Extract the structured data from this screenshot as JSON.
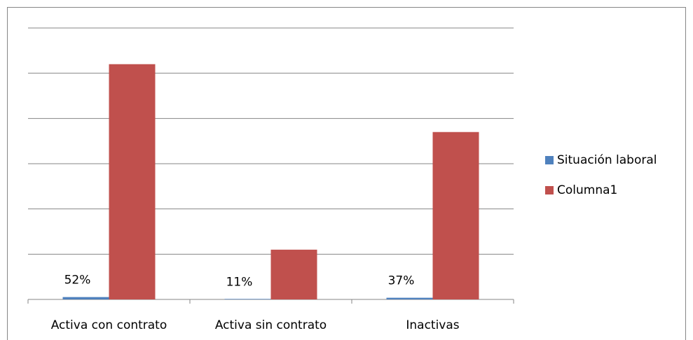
{
  "chart_data": {
    "type": "bar",
    "categories": [
      "Activa con contrato",
      "Activa sin contrato",
      "Inactivas"
    ],
    "series": [
      {
        "name": "Situación laboral",
        "color": "#4f81bd",
        "values": [
          0.52,
          0.11,
          0.37
        ],
        "value_labels": [
          "52%",
          "11%",
          "37%"
        ]
      },
      {
        "name": "Columna1",
        "color": "#c0504d",
        "values": [
          52,
          11,
          37
        ]
      }
    ],
    "ylim": [
      0,
      60
    ],
    "yticks": [
      0,
      10,
      20,
      30,
      40,
      50,
      60
    ],
    "grid": true,
    "legend": "right"
  }
}
